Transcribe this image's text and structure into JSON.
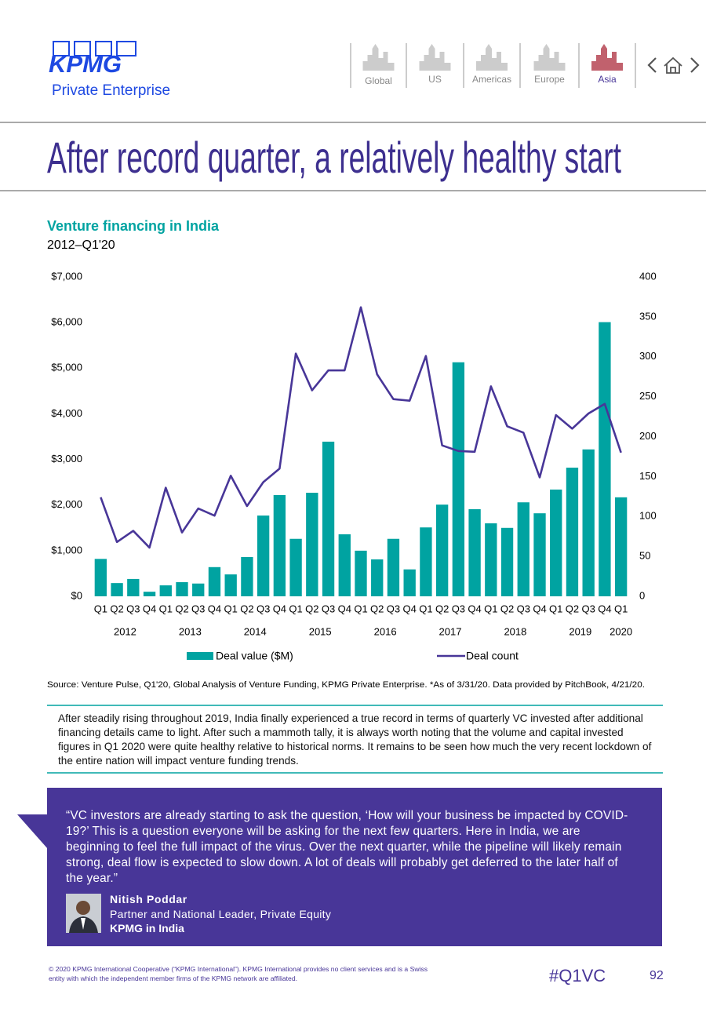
{
  "header": {
    "logo": "KPMG",
    "subtitle": "Private Enterprise",
    "tabs": [
      "Global",
      "US",
      "Americas",
      "Europe",
      "Asia"
    ]
  },
  "title": "After record quarter, a relatively healthy start",
  "chart_data": {
    "type": "combo",
    "title": "Venture financing in India",
    "subtitle": "2012–Q1'20",
    "categories": [
      "Q1",
      "Q2",
      "Q3",
      "Q4",
      "Q1",
      "Q2",
      "Q3",
      "Q4",
      "Q1",
      "Q2",
      "Q3",
      "Q4",
      "Q1",
      "Q2",
      "Q3",
      "Q4",
      "Q1",
      "Q2",
      "Q3",
      "Q4",
      "Q1",
      "Q2",
      "Q3",
      "Q4",
      "Q1",
      "Q2",
      "Q3",
      "Q4",
      "Q1",
      "Q2",
      "Q3",
      "Q4",
      "Q1"
    ],
    "years": [
      "2012",
      "2013",
      "2014",
      "2015",
      "2016",
      "2017",
      "2018",
      "2019",
      "2020"
    ],
    "series": [
      {
        "name": "Deal value ($M)",
        "type": "bar",
        "color": "#00a3a1",
        "values": [
          820,
          290,
          380,
          100,
          240,
          310,
          280,
          640,
          480,
          860,
          1770,
          2220,
          1260,
          2270,
          3390,
          1360,
          1000,
          810,
          1260,
          590,
          1510,
          2010,
          5130,
          1910,
          1600,
          1500,
          2060,
          1820,
          2340,
          2820,
          3220,
          6010,
          2170
        ]
      },
      {
        "name": "Deal count",
        "type": "line",
        "axis": "y2",
        "color": "#483698",
        "values": [
          124,
          68,
          82,
          61,
          136,
          80,
          110,
          101,
          151,
          113,
          143,
          160,
          304,
          258,
          283,
          283,
          362,
          278,
          247,
          245,
          301,
          189,
          182,
          181,
          263,
          213,
          205,
          149,
          227,
          210,
          229,
          241,
          180
        ]
      }
    ],
    "ylim": [
      0,
      7000
    ],
    "yticks": [
      {
        "value": 0,
        "label": "$0"
      },
      {
        "value": 1000,
        "label": "$1,000"
      },
      {
        "value": 2000,
        "label": "$2,000"
      },
      {
        "value": 3000,
        "label": "$3,000"
      },
      {
        "value": 4000,
        "label": "$4,000"
      },
      {
        "value": 5000,
        "label": "$5,000"
      },
      {
        "value": 6000,
        "label": "$6,000"
      },
      {
        "value": 7000,
        "label": "$7,000"
      }
    ],
    "y2lim": [
      0,
      400
    ],
    "y2ticks": [
      0,
      50,
      100,
      150,
      200,
      250,
      300,
      350,
      400
    ],
    "grid": false
  },
  "source": "Source: Venture Pulse, Q1'20, Global Analysis of Venture Funding, KPMG Private Enterprise. *As of 3/31/20. Data provided by PitchBook, 4/21/20.",
  "body": "After steadily rising throughout 2019, India finally experienced a true record in terms of quarterly VC invested after additional financing details came to light. After such a mammoth tally, it is always worth noting that the volume and capital invested figures in Q1 2020 were quite healthy relative to historical norms. It remains to be seen how much the very recent lockdown of the entire nation will impact venture funding trends.",
  "quote": {
    "text": "“VC investors are already starting to ask the question, ‘How will your business be impacted by COVID-19?’ This is a question everyone will be asking for the next few quarters. Here in India, we are beginning to feel the full impact of the virus. Over the next quarter, while the pipeline will likely remain strong, deal flow is expected to slow down. A lot of deals will probably get deferred to the later half of the year.”",
    "name": "Nitish Poddar",
    "role": "Partner and National Leader, Private Equity",
    "org": "KPMG in India"
  },
  "footer": {
    "copyright": "© 2020 KPMG International Cooperative (“KPMG International”). KPMG International provides no client services and is a Swiss entity with which the independent member firms of the KPMG network are affiliated.",
    "hashtag": "#Q1VC",
    "page": 92
  }
}
